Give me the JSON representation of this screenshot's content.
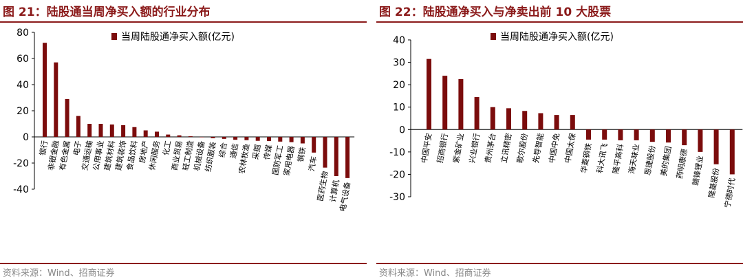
{
  "colors": {
    "bar": "#7b0c0c",
    "title": "#8b1a1a",
    "axis": "#000000",
    "source": "#888888"
  },
  "charts": [
    {
      "title": "图 21：陆股通当周净买入额的行业分布",
      "source": "资料来源：Wind、招商证券",
      "chart_data": {
        "type": "bar",
        "categories": [
          "银行",
          "非银金融",
          "有色金属",
          "电子",
          "交通运输",
          "公用事业",
          "建筑材料",
          "建筑装饰",
          "食品饮料",
          "房地产",
          "休闲服务",
          "化工",
          "商业贸易",
          "轻工制造",
          "机械设备",
          "纺织服装",
          "综合",
          "通信",
          "农林牧渔",
          "采掘",
          "传媒",
          "国防军工",
          "家用电器",
          "钢铁",
          "汽车",
          "医药生物",
          "计算机",
          "电气设备"
        ],
        "series": [
          {
            "name": "当周陆股通净买入额(亿元)",
            "values": [
              72,
              57,
              29,
              16,
              10,
              10,
              9.5,
              9,
              7.5,
              5,
              4,
              1.8,
              1.2,
              0.5,
              -0.3,
              -1,
              -1.5,
              -2.2,
              -2.5,
              -3,
              -3.2,
              -3.6,
              -4,
              -5,
              -12,
              -23.5,
              -30,
              -31.5
            ]
          }
        ],
        "ylim": [
          -40,
          80
        ],
        "yticks": [
          80,
          60,
          40,
          20,
          0,
          -20,
          -40
        ],
        "legend": "top-right"
      }
    },
    {
      "title": "图 22：陆股通净买入与净卖出前 10 大股票",
      "source": "资料来源：Wind、招商证券",
      "chart_data": {
        "type": "bar",
        "categories": [
          "中国平安",
          "招商银行",
          "紫金矿业",
          "兴业银行",
          "贵州茅台",
          "立讯精密",
          "歌尔股份",
          "先导智能",
          "中国中免",
          "中国太保",
          "华菱钢铁",
          "科大讯飞",
          "隆平高科",
          "海天味业",
          "恩捷股份",
          "美的集团",
          "药明康德",
          "赣锋锂业",
          "隆基股份",
          "宁德时代"
        ],
        "series": [
          {
            "name": "当周陆股通净买入额(亿元)",
            "values": [
              31.5,
              24,
              22.5,
              14.5,
              10,
              9.5,
              8.3,
              7.3,
              6.5,
              6.5,
              -4.5,
              -4.5,
              -4.8,
              -4.8,
              -5.5,
              -5.8,
              -7,
              -10,
              -15.5,
              -20
            ]
          }
        ],
        "ylim": [
          -30,
          40
        ],
        "yticks": [
          40,
          30,
          20,
          10,
          0,
          -10,
          -20,
          -30
        ],
        "legend": "top-right"
      }
    }
  ]
}
